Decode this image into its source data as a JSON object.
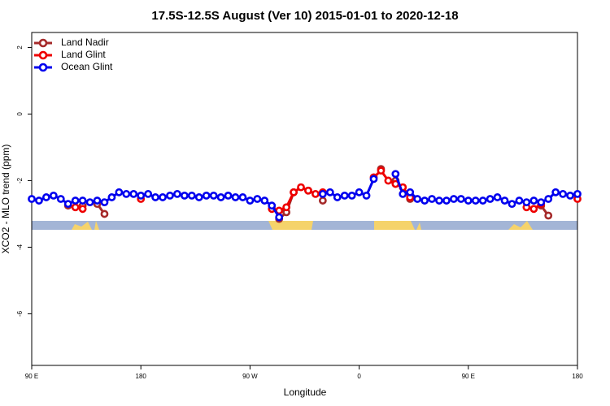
{
  "chart_data": {
    "type": "line",
    "title": "17.5S-12.5S August (Ver 10)   2015-01-01 to 2020-12-18",
    "xlabel": "Longitude",
    "ylabel": "XCO2 - MLO trend (ppm)",
    "xlim": [
      90,
      540
    ],
    "xticks": [
      {
        "value": 90,
        "label": "90 E"
      },
      180,
      {
        "value": 270,
        "label": "90 W"
      },
      {
        "value": 360,
        "label": "0"
      },
      {
        "value": 450,
        "label": "90 E"
      },
      {
        "value": 540,
        "label": "180"
      }
    ],
    "ylim": [
      -7.55,
      2.45
    ],
    "yticks": [
      -6,
      -4,
      -2,
      0,
      2
    ],
    "legend": "upper left",
    "x": [
      90,
      96,
      102,
      108,
      114,
      120,
      126,
      132,
      138,
      144,
      150,
      156,
      162,
      168,
      174,
      180,
      186,
      192,
      198,
      204,
      210,
      216,
      222,
      228,
      234,
      240,
      246,
      252,
      258,
      264,
      270,
      276,
      282,
      288,
      294,
      300,
      306,
      312,
      318,
      324,
      330,
      336,
      342,
      348,
      354,
      360,
      366,
      372,
      378,
      384,
      390,
      396,
      402,
      408,
      414,
      420,
      426,
      432,
      438,
      444,
      450,
      456,
      462,
      468,
      474,
      480,
      486,
      492,
      498,
      504,
      510,
      516,
      522,
      528,
      534,
      540
    ],
    "series": [
      {
        "name": "Land Nadir",
        "color": "#a52a2a",
        "values": [
          null,
          null,
          null,
          null,
          null,
          -2.75,
          null,
          -2.75,
          null,
          -2.7,
          -3.0,
          null,
          null,
          null,
          null,
          null,
          null,
          null,
          null,
          null,
          null,
          null,
          null,
          null,
          null,
          null,
          null,
          null,
          null,
          null,
          null,
          null,
          null,
          null,
          -3.15,
          -2.95,
          -2.35,
          null,
          -2.3,
          null,
          -2.6,
          null,
          null,
          null,
          null,
          null,
          null,
          null,
          -1.65,
          null,
          -2.0,
          null,
          -2.55,
          null,
          null,
          null,
          null,
          null,
          null,
          null,
          null,
          null,
          null,
          null,
          null,
          null,
          null,
          null,
          null,
          null,
          -2.75,
          -3.05,
          null,
          null,
          null,
          null
        ]
      },
      {
        "name": "Land Glint",
        "color": "#ee0000",
        "values": [
          null,
          null,
          null,
          null,
          null,
          null,
          -2.8,
          -2.85,
          null,
          null,
          null,
          null,
          null,
          null,
          null,
          -2.55,
          null,
          null,
          null,
          null,
          null,
          null,
          null,
          null,
          null,
          null,
          null,
          null,
          null,
          null,
          null,
          null,
          null,
          -2.85,
          -2.9,
          -2.8,
          -2.35,
          -2.2,
          -2.3,
          -2.4,
          -2.35,
          null,
          null,
          null,
          null,
          null,
          null,
          -1.9,
          -1.7,
          -2.0,
          -2.1,
          -2.2,
          -2.5,
          null,
          null,
          null,
          null,
          null,
          null,
          null,
          null,
          null,
          null,
          null,
          null,
          null,
          null,
          null,
          -2.8,
          -2.85,
          -2.7,
          null,
          null,
          null,
          null,
          -2.55
        ]
      },
      {
        "name": "Ocean Glint",
        "color": "#0000ee",
        "values": [
          -2.55,
          -2.6,
          -2.5,
          -2.45,
          -2.55,
          -2.7,
          -2.6,
          -2.6,
          -2.65,
          -2.6,
          -2.65,
          -2.5,
          -2.35,
          -2.4,
          -2.4,
          -2.45,
          -2.4,
          -2.5,
          -2.5,
          -2.45,
          -2.4,
          -2.45,
          -2.45,
          -2.5,
          -2.45,
          -2.45,
          -2.5,
          -2.45,
          -2.5,
          -2.5,
          -2.6,
          -2.55,
          -2.6,
          -2.75,
          -3.1,
          null,
          null,
          null,
          null,
          null,
          -2.4,
          -2.35,
          -2.5,
          -2.45,
          -2.45,
          -2.35,
          -2.45,
          -1.95,
          null,
          null,
          -1.8,
          -2.4,
          -2.35,
          -2.55,
          -2.6,
          -2.55,
          -2.6,
          -2.6,
          -2.55,
          -2.55,
          -2.6,
          -2.6,
          -2.6,
          -2.55,
          -2.5,
          -2.6,
          -2.7,
          -2.6,
          -2.65,
          -2.6,
          -2.65,
          -2.55,
          -2.35,
          -2.4,
          -2.45,
          -2.4
        ]
      }
    ]
  }
}
